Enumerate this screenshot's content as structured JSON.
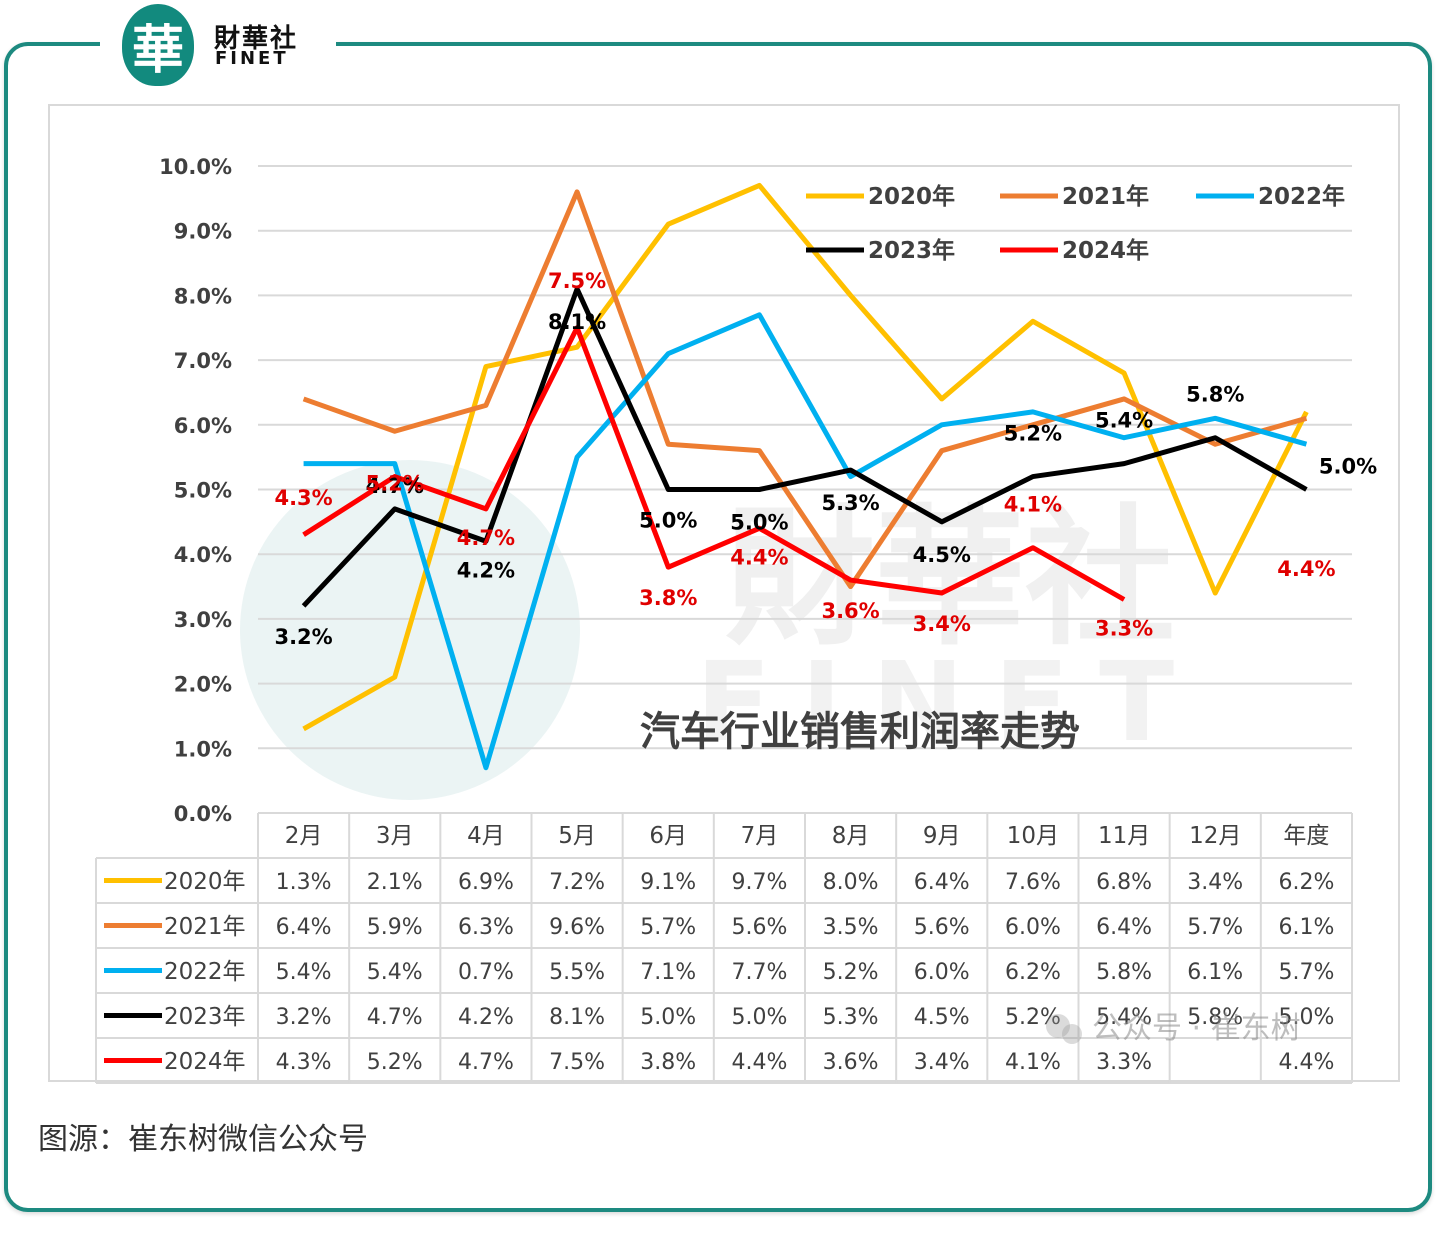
{
  "brand": {
    "mark": "華",
    "name_cn": "財華社",
    "name_en": "FINET"
  },
  "watermark": {
    "cn": "財華社",
    "en": "FINET"
  },
  "source": "图源：崔东树微信公众号",
  "wechat_mark": "公众号 · 崔东树",
  "chart_data": {
    "type": "line",
    "title": "汽车行业销售利润率走势",
    "categories": [
      "2月",
      "3月",
      "4月",
      "5月",
      "6月",
      "7月",
      "8月",
      "9月",
      "10月",
      "11月",
      "12月",
      "年度"
    ],
    "ylim": [
      0,
      10
    ],
    "yticks": [
      "0.0%",
      "1.0%",
      "2.0%",
      "3.0%",
      "4.0%",
      "5.0%",
      "6.0%",
      "7.0%",
      "8.0%",
      "9.0%",
      "10.0%"
    ],
    "grid": true,
    "legend_position": "top-right",
    "series": [
      {
        "name": "2020年",
        "color": "#ffc000",
        "values": [
          1.3,
          2.1,
          6.9,
          7.2,
          9.1,
          9.7,
          8.0,
          6.4,
          7.6,
          6.8,
          3.4,
          6.2
        ],
        "table": [
          "1.3%",
          "2.1%",
          "6.9%",
          "7.2%",
          "9.1%",
          "9.7%",
          "8.0%",
          "6.4%",
          "7.6%",
          "6.8%",
          "3.4%",
          "6.2%"
        ]
      },
      {
        "name": "2021年",
        "color": "#ed7d31",
        "values": [
          6.4,
          5.9,
          6.3,
          9.6,
          5.7,
          5.6,
          3.5,
          5.6,
          6.0,
          6.4,
          5.7,
          6.1
        ],
        "table": [
          "6.4%",
          "5.9%",
          "6.3%",
          "9.6%",
          "5.7%",
          "5.6%",
          "3.5%",
          "5.6%",
          "6.0%",
          "6.4%",
          "5.7%",
          "6.1%"
        ]
      },
      {
        "name": "2022年",
        "color": "#00b0f0",
        "values": [
          5.4,
          5.4,
          0.7,
          5.5,
          7.1,
          7.7,
          5.2,
          6.0,
          6.2,
          5.8,
          6.1,
          5.7
        ],
        "table": [
          "5.4%",
          "5.4%",
          "0.7%",
          "5.5%",
          "7.1%",
          "7.7%",
          "5.2%",
          "6.0%",
          "6.2%",
          "5.8%",
          "6.1%",
          "5.7%"
        ]
      },
      {
        "name": "2023年",
        "color": "#000000",
        "values": [
          3.2,
          4.7,
          4.2,
          8.1,
          5.0,
          5.0,
          5.3,
          4.5,
          5.2,
          5.4,
          5.8,
          5.0
        ],
        "table": [
          "3.2%",
          "4.7%",
          "4.2%",
          "8.1%",
          "5.0%",
          "5.0%",
          "5.3%",
          "4.5%",
          "5.2%",
          "5.4%",
          "5.8%",
          "5.0%"
        ],
        "labels": [
          "3.2%",
          "4.7%",
          "4.2%",
          "8.1%",
          "5.0%",
          "5.0%",
          "5.3%",
          "4.5%",
          "5.2%",
          "5.4%",
          "5.8%",
          "5.0%"
        ]
      },
      {
        "name": "2024年",
        "color": "#ff0000",
        "values": [
          4.3,
          5.2,
          4.7,
          7.5,
          3.8,
          4.4,
          3.6,
          3.4,
          4.1,
          3.3,
          null,
          null
        ],
        "table": [
          "4.3%",
          "5.2%",
          "4.7%",
          "7.5%",
          "3.8%",
          "4.4%",
          "3.6%",
          "3.4%",
          "4.1%",
          "3.3%",
          "",
          "4.4%"
        ],
        "labels": [
          "4.3%",
          "5.2%",
          "4.7%",
          "7.5%",
          "3.8%",
          "4.4%",
          "3.6%",
          "3.4%",
          "4.1%",
          "3.3%",
          "",
          "4.4%"
        ]
      }
    ]
  }
}
